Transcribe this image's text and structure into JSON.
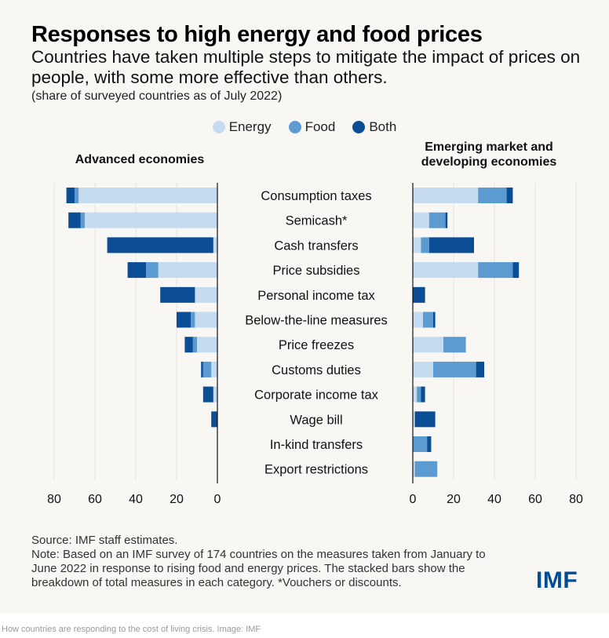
{
  "title": "Responses to high energy and food prices",
  "subtitle": "Countries have taken multiple steps to mitigate the impact of prices on people, with some more effective than others.",
  "note_top": "(share of surveyed countries as of July 2022)",
  "colors": {
    "energy": "#c5dbef",
    "food": "#5b9bd1",
    "both": "#0b4e96",
    "axis": "#111111",
    "grid": "#e6e3de",
    "logo": "#004c97"
  },
  "legend": [
    {
      "label": "Energy",
      "color": "#c5dbef"
    },
    {
      "label": "Food",
      "color": "#5b9bd1"
    },
    {
      "label": "Both",
      "color": "#0b4e96"
    }
  ],
  "chart_data": {
    "type": "bar",
    "orientation": "horizontal",
    "stacked": true,
    "categories": [
      "Consumption taxes",
      "Semicash*",
      "Cash transfers",
      "Price subsidies",
      "Personal income tax",
      "Below-the-line measures",
      "Price freezes",
      "Customs duties",
      "Corporate income tax",
      "Wage bill",
      "In-kind transfers",
      "Export restrictions"
    ],
    "panels": [
      {
        "title_lines": [
          "Advanced economies"
        ],
        "xlim": [
          80,
          0
        ],
        "ticks": [
          "80",
          "60",
          "40",
          "20",
          "0"
        ],
        "tick_values": [
          80,
          60,
          40,
          20,
          0
        ],
        "series": [
          {
            "name": "Energy",
            "values": [
              68,
              65,
              2,
              29,
              11,
              11,
              10,
              3,
              2,
              0,
              0,
              0
            ]
          },
          {
            "name": "Food",
            "values": [
              2,
              2,
              0,
              6,
              0,
              2,
              2,
              4,
              0,
              0,
              0,
              0
            ]
          },
          {
            "name": "Both",
            "values": [
              4,
              6,
              52,
              9,
              17,
              7,
              4,
              1,
              5,
              3,
              0,
              0
            ]
          }
        ]
      },
      {
        "title_lines": [
          "Emerging market and",
          "developing economies"
        ],
        "xlim": [
          0,
          80
        ],
        "ticks": [
          "0",
          "20",
          "40",
          "60",
          "80"
        ],
        "tick_values": [
          0,
          20,
          40,
          60,
          80
        ],
        "series": [
          {
            "name": "Energy",
            "values": [
              32,
              8,
              4,
              32,
              0,
              5,
              15,
              10,
              2,
              1,
              0,
              1
            ]
          },
          {
            "name": "Food",
            "values": [
              14,
              8,
              4,
              17,
              0,
              5,
              11,
              21,
              2,
              0,
              7,
              11
            ]
          },
          {
            "name": "Both",
            "values": [
              3,
              1,
              22,
              3,
              6,
              1,
              0,
              4,
              2,
              10,
              2,
              0
            ]
          }
        ]
      }
    ]
  },
  "source": "Source: IMF staff estimates.",
  "note": "Note: Based on an IMF survey of 174 countries on the measures taken from January to June 2022 in response to rising food and energy prices. The stacked bars show the breakdown of total measures in each category. *Vouchers or discounts.",
  "logo": "IMF",
  "caption": "How countries are responding to the cost of living crisis. Image: IMF"
}
